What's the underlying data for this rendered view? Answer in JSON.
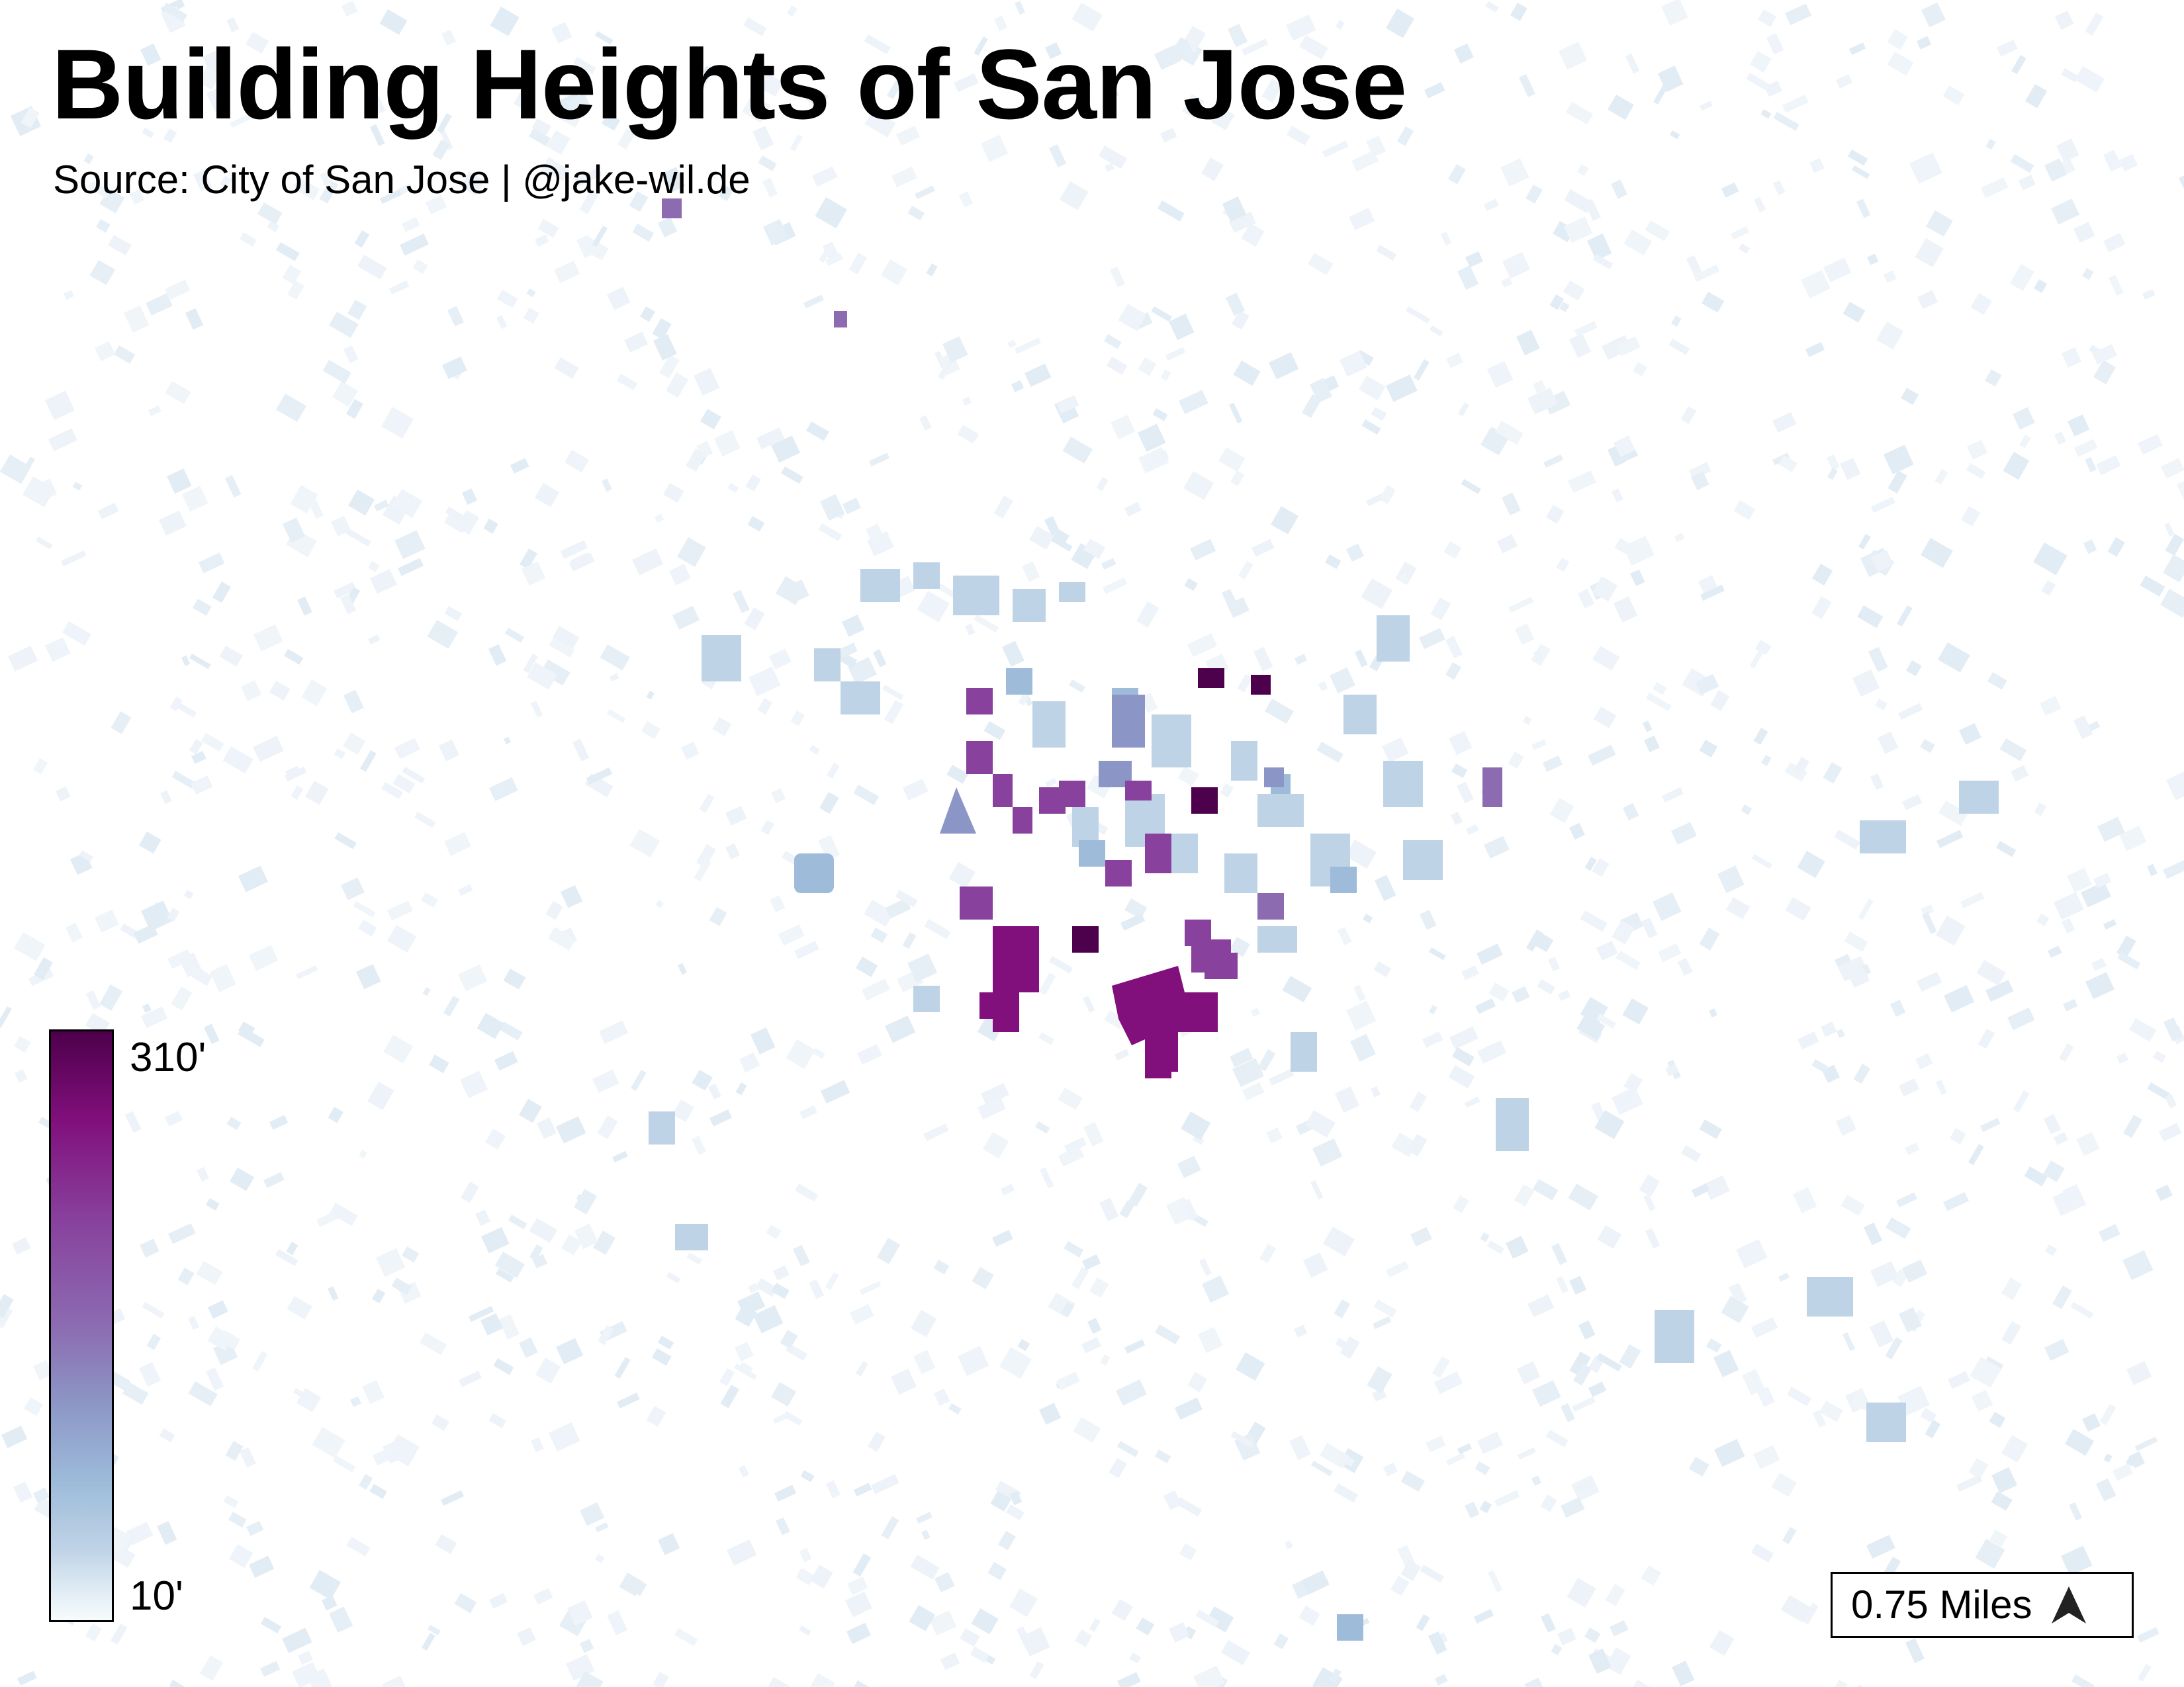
{
  "title": "Building Heights of San Jose",
  "subtitle": "Source: City of San Jose | @jake-wil.de",
  "legend": {
    "max_label": "310'",
    "min_label": "10'",
    "max_value": 310,
    "min_value": 10,
    "colors": [
      "#4d004b",
      "#810f7c",
      "#88419d",
      "#8c6bb1",
      "#8c96c6",
      "#9ebcda",
      "#bfd3e6",
      "#e0ecf4",
      "#f7fcfd"
    ]
  },
  "scale": {
    "label": "0.75 Miles",
    "icon": "north-arrow-icon"
  }
}
